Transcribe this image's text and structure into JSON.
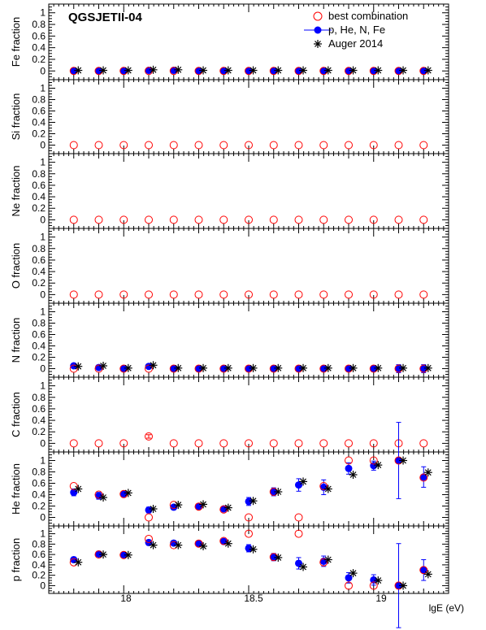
{
  "figure": {
    "title": "QGSJETII-04",
    "xlabel": "lgE (eV)",
    "x_ticks": [
      "18",
      "18.5",
      "19"
    ],
    "y_ticks": [
      "0",
      "0.2",
      "0.4",
      "0.6",
      "0.8",
      "1"
    ]
  },
  "legend": [
    {
      "label": "best combination",
      "marker": "open-circle",
      "color": "#ff0000"
    },
    {
      "label": "p, He, N, Fe",
      "marker": "filled-circle",
      "color": "#0000ff"
    },
    {
      "label": "Auger 2014",
      "marker": "star",
      "color": "#000000"
    }
  ],
  "chart_data": [
    {
      "type": "scatter",
      "ylabel": "Fe fraction",
      "xlim": [
        17.7,
        19.3
      ],
      "ylim": [
        -0.15,
        1.15
      ],
      "x": [
        17.8,
        17.9,
        18.0,
        18.1,
        18.2,
        18.3,
        18.4,
        18.5,
        18.6,
        18.7,
        18.8,
        18.9,
        19.0,
        19.1,
        19.2
      ],
      "series": [
        {
          "name": "best combination",
          "values": [
            0,
            0,
            0,
            0,
            0,
            0,
            0,
            0,
            0,
            0,
            0,
            0,
            0,
            0,
            0
          ]
        },
        {
          "name": "p, He, N, Fe",
          "values": [
            0,
            0,
            0,
            0.01,
            0.01,
            0,
            0,
            0,
            0,
            0,
            0,
            0,
            0,
            0,
            0
          ]
        },
        {
          "name": "Auger 2014",
          "values": [
            0.01,
            0.01,
            0.01,
            0.02,
            0.02,
            0.01,
            0.01,
            0.01,
            0.01,
            0.01,
            0.01,
            0.01,
            0.01,
            0.01,
            0.01
          ]
        }
      ]
    },
    {
      "type": "scatter",
      "ylabel": "Si fraction",
      "xlim": [
        17.7,
        19.3
      ],
      "ylim": [
        -0.15,
        1.15
      ],
      "x": [
        17.8,
        17.9,
        18.0,
        18.1,
        18.2,
        18.3,
        18.4,
        18.5,
        18.6,
        18.7,
        18.8,
        18.9,
        19.0,
        19.1,
        19.2
      ],
      "series": [
        {
          "name": "best combination",
          "values": [
            0,
            0,
            0,
            0,
            0,
            0,
            0,
            0,
            0,
            0,
            0,
            0,
            0,
            0,
            0
          ]
        }
      ]
    },
    {
      "type": "scatter",
      "ylabel": "Ne fraction",
      "xlim": [
        17.7,
        19.3
      ],
      "ylim": [
        -0.15,
        1.15
      ],
      "x": [
        17.8,
        17.9,
        18.0,
        18.1,
        18.2,
        18.3,
        18.4,
        18.5,
        18.6,
        18.7,
        18.8,
        18.9,
        19.0,
        19.1,
        19.2
      ],
      "series": [
        {
          "name": "best combination",
          "values": [
            0,
            0,
            0,
            0,
            0,
            0,
            0,
            0,
            0,
            0,
            0,
            0,
            0,
            0,
            0
          ]
        }
      ]
    },
    {
      "type": "scatter",
      "ylabel": "O fraction",
      "xlim": [
        17.7,
        19.3
      ],
      "ylim": [
        -0.15,
        1.15
      ],
      "x": [
        17.8,
        17.9,
        18.0,
        18.1,
        18.2,
        18.3,
        18.4,
        18.5,
        18.6,
        18.7,
        18.8,
        18.9,
        19.0,
        19.1,
        19.2
      ],
      "series": [
        {
          "name": "best combination",
          "values": [
            0,
            0,
            0,
            0,
            0,
            0,
            0,
            0,
            0,
            0,
            0,
            0,
            0,
            0,
            0
          ]
        }
      ]
    },
    {
      "type": "scatter",
      "ylabel": "N fraction",
      "xlim": [
        17.7,
        19.3
      ],
      "ylim": [
        -0.15,
        1.15
      ],
      "x": [
        17.8,
        17.9,
        18.0,
        18.1,
        18.2,
        18.3,
        18.4,
        18.5,
        18.6,
        18.7,
        18.8,
        18.9,
        19.0,
        19.1,
        19.2
      ],
      "series": [
        {
          "name": "best combination",
          "values": [
            0,
            0,
            0,
            0,
            0,
            0,
            0,
            0,
            0,
            0,
            0,
            0,
            0,
            0,
            0
          ]
        },
        {
          "name": "p, He, N, Fe",
          "values": [
            0.05,
            0.02,
            0,
            0.04,
            0,
            0,
            0,
            0,
            0,
            0,
            0,
            0,
            0,
            0,
            0
          ],
          "err": [
            0.03,
            0.03,
            0.02,
            0.03,
            0.02,
            0.02,
            0.02,
            0.02,
            0.02,
            0.02,
            0.02,
            0.03,
            0.05,
            0.07,
            0.07
          ]
        },
        {
          "name": "Auger 2014",
          "values": [
            0.04,
            0.05,
            0.01,
            0.06,
            0.01,
            0.01,
            0.01,
            0.01,
            0.01,
            0.01,
            0.01,
            0.01,
            0.01,
            0.01,
            0.01
          ]
        }
      ]
    },
    {
      "type": "scatter",
      "ylabel": "C fraction",
      "xlim": [
        17.7,
        19.3
      ],
      "ylim": [
        -0.15,
        1.15
      ],
      "x": [
        17.8,
        17.9,
        18.0,
        18.1,
        18.2,
        18.3,
        18.4,
        18.5,
        18.6,
        18.7,
        18.8,
        18.9,
        19.0,
        19.1,
        19.2
      ],
      "series": [
        {
          "name": "best combination",
          "values": [
            0,
            0,
            0,
            0.12,
            0,
            0,
            0,
            0,
            0,
            0,
            0,
            0,
            0,
            0,
            0
          ],
          "err": [
            0,
            0,
            0,
            0.03,
            0,
            0,
            0,
            0,
            0,
            0,
            0,
            0,
            0,
            0,
            0
          ]
        }
      ]
    },
    {
      "type": "scatter",
      "ylabel": "He fraction",
      "xlim": [
        17.7,
        19.3
      ],
      "ylim": [
        -0.15,
        1.15
      ],
      "x": [
        17.8,
        17.9,
        18.0,
        18.1,
        18.2,
        18.3,
        18.4,
        18.5,
        18.6,
        18.7,
        18.8,
        18.9,
        19.0,
        19.1,
        19.2
      ],
      "series": [
        {
          "name": "best combination",
          "values": [
            0.55,
            0.4,
            0.41,
            0,
            0.22,
            0.19,
            0.14,
            0,
            0.45,
            0,
            0.55,
            1.0,
            1.0,
            1.0,
            0.7
          ]
        },
        {
          "name": "p, He, N, Fe",
          "values": [
            0.44,
            0.38,
            0.41,
            0.13,
            0.18,
            0.19,
            0.15,
            0.28,
            0.45,
            0.57,
            0.53,
            0.86,
            0.91,
            1.0,
            0.71
          ],
          "err": [
            0.06,
            0.06,
            0.04,
            0.05,
            0.04,
            0.04,
            0.04,
            0.07,
            0.07,
            0.11,
            0.13,
            0.1,
            0.08,
            0.67,
            0.18
          ]
        },
        {
          "name": "Auger 2014",
          "values": [
            0.5,
            0.35,
            0.43,
            0.15,
            0.22,
            0.23,
            0.17,
            0.29,
            0.45,
            0.63,
            0.5,
            0.75,
            0.92,
            1.0,
            0.79
          ]
        }
      ]
    },
    {
      "type": "scatter",
      "ylabel": "p fraction",
      "xlim": [
        17.7,
        19.3
      ],
      "ylim": [
        -0.15,
        1.15
      ],
      "x": [
        17.8,
        17.9,
        18.0,
        18.1,
        18.2,
        18.3,
        18.4,
        18.5,
        18.6,
        18.7,
        18.8,
        18.9,
        19.0,
        19.1,
        19.2
      ],
      "series": [
        {
          "name": "best combination",
          "values": [
            0.45,
            0.6,
            0.59,
            0.9,
            0.78,
            0.81,
            0.86,
            1.0,
            0.55,
            1.0,
            0.45,
            0,
            0,
            0,
            0.3
          ]
        },
        {
          "name": "p, He, N, Fe",
          "values": [
            0.5,
            0.61,
            0.59,
            0.83,
            0.82,
            0.81,
            0.85,
            0.72,
            0.55,
            0.43,
            0.47,
            0.15,
            0.11,
            0.0,
            0.3
          ],
          "err": [
            0.05,
            0.05,
            0.04,
            0.05,
            0.04,
            0.04,
            0.04,
            0.07,
            0.07,
            0.11,
            0.1,
            0.1,
            0.1,
            0.81,
            0.2
          ]
        },
        {
          "name": "Auger 2014",
          "values": [
            0.45,
            0.6,
            0.59,
            0.78,
            0.78,
            0.76,
            0.81,
            0.7,
            0.54,
            0.36,
            0.5,
            0.24,
            0.1,
            0.0,
            0.22
          ]
        }
      ]
    }
  ]
}
